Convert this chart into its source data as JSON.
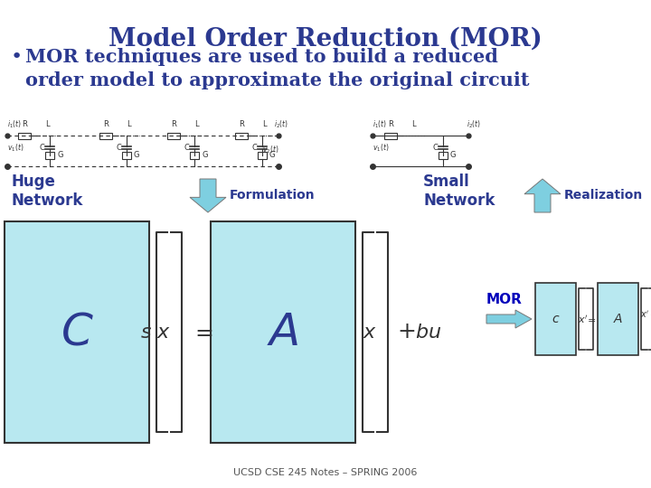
{
  "title": "Model Order Reduction (MOR)",
  "bullet": "MOR techniques are used to build a reduced\norder model to approximate the original circuit",
  "title_color": "#2B3990",
  "bullet_color": "#2B3990",
  "bg_color": "#FFFFFF",
  "footer": "UCSD CSE 245 Notes – SPRING 2006",
  "huge_network_label": "Huge\nNetwork",
  "small_network_label": "Small\nNetwork",
  "formulation_label": "Formulation",
  "realization_label": "Realization",
  "mor_label": "MOR",
  "matrix_fill": "#B8E8F0",
  "arrow_fill": "#7ECFE0",
  "label_color": "#2B3990",
  "matrix_border": "#333333",
  "lc": "#333333",
  "footer_color": "#555555"
}
